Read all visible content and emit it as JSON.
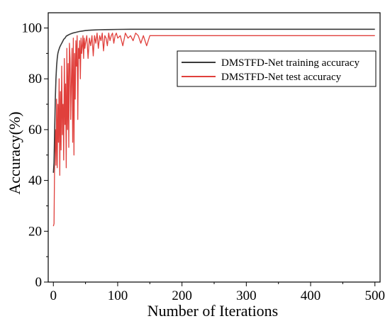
{
  "chart_data": {
    "type": "line",
    "xlabel": "Number of Iterations",
    "ylabel": "Accuracy(%)",
    "xlim": [
      -8,
      508
    ],
    "ylim": [
      0,
      106
    ],
    "xticks": [
      0,
      100,
      200,
      300,
      400,
      500
    ],
    "xtick_labels": [
      "0",
      "100",
      "200",
      "300",
      "400",
      "500"
    ],
    "yticks": [
      0,
      20,
      40,
      60,
      80,
      100
    ],
    "ytick_labels": [
      "0",
      "20",
      "40",
      "60",
      "80",
      "100"
    ],
    "grid": false,
    "legend_position": "top-right",
    "series": [
      {
        "name": "DMSTFD-Net training accuracy",
        "color": "#3a3a3a",
        "x": [
          0,
          1,
          2,
          3,
          4,
          5,
          6,
          7,
          8,
          10,
          12,
          14,
          16,
          18,
          20,
          23,
          26,
          30,
          35,
          40,
          45,
          50,
          55,
          60,
          70,
          80,
          90,
          100,
          120,
          150,
          200,
          300,
          400,
          500
        ],
        "y": [
          43,
          47,
          60,
          72,
          80,
          85,
          88,
          90,
          91,
          92.5,
          93.5,
          94.5,
          95.5,
          96,
          96.8,
          97.2,
          97.6,
          98,
          98.3,
          98.6,
          98.8,
          99,
          99.1,
          99.2,
          99.3,
          99.35,
          99.4,
          99.45,
          99.5,
          99.5,
          99.5,
          99.5,
          99.5,
          99.5
        ]
      },
      {
        "name": "DMSTFD-Net test accuracy",
        "color": "#e0403c",
        "x": [
          0,
          1,
          2,
          3,
          4,
          5,
          6,
          7,
          8,
          9,
          10,
          11,
          12,
          13,
          14,
          15,
          16,
          17,
          18,
          19,
          20,
          21,
          22,
          23,
          24,
          25,
          26,
          27,
          28,
          29,
          30,
          31,
          32,
          33,
          34,
          35,
          36,
          37,
          38,
          39,
          40,
          41,
          42,
          43,
          44,
          45,
          46,
          47,
          48,
          49,
          50,
          52,
          54,
          56,
          58,
          60,
          62,
          64,
          66,
          68,
          70,
          72,
          74,
          76,
          78,
          80,
          82,
          84,
          86,
          88,
          90,
          92,
          94,
          96,
          98,
          100,
          104,
          108,
          112,
          116,
          120,
          124,
          128,
          132,
          136,
          140,
          145,
          150,
          170,
          200,
          250,
          300,
          350,
          400,
          450,
          500
        ],
        "y": [
          22,
          23,
          50,
          60,
          46,
          72,
          45,
          70,
          55,
          80,
          42,
          75,
          52,
          85,
          58,
          70,
          48,
          88,
          62,
          78,
          45,
          92,
          60,
          86,
          53,
          94,
          88,
          64,
          80,
          92,
          55,
          96,
          50,
          90,
          72,
          95,
          85,
          97,
          64,
          92,
          88,
          95,
          80,
          96,
          90,
          93,
          97,
          88,
          96,
          92,
          94,
          97,
          88,
          96,
          93,
          97,
          89,
          97,
          94,
          98,
          92,
          97,
          95,
          98,
          91,
          97,
          96,
          93,
          98,
          95,
          97,
          98,
          94,
          97,
          98,
          96,
          97,
          93,
          98,
          96,
          97,
          95,
          98,
          97,
          94,
          97,
          93,
          97,
          97,
          97,
          97,
          97,
          97,
          97,
          97,
          97
        ]
      }
    ]
  }
}
